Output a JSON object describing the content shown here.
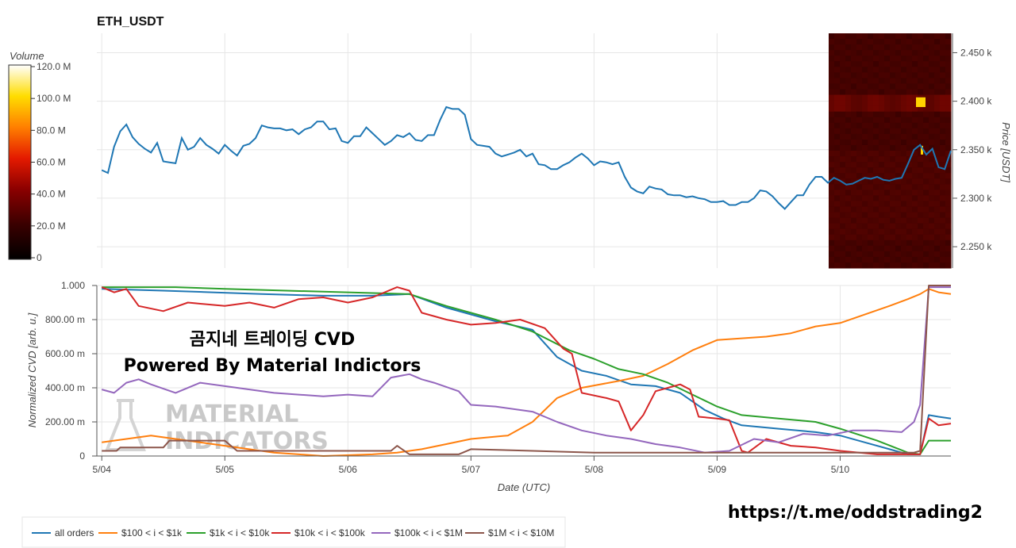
{
  "chart_data": [
    {
      "type": "line",
      "title": "ETH_USDT",
      "xlabel": "",
      "ylabel": "Price [USDT]",
      "ylim": [
        2228,
        2470
      ],
      "yticks": [
        "2.250 k",
        "2.300 k",
        "2.350 k",
        "2.400 k",
        "2.450 k"
      ],
      "ytick_values": [
        2250,
        2300,
        2350,
        2400,
        2450
      ],
      "grid": true,
      "series": [
        {
          "color": "#1f77b4",
          "x": [
            0,
            0.05,
            0.1,
            0.15,
            0.2,
            0.25,
            0.3,
            0.35,
            0.4,
            0.45,
            0.5,
            0.55,
            0.6,
            0.65,
            0.7,
            0.75,
            0.8,
            0.85,
            0.9,
            0.95,
            1.0,
            1.05,
            1.1,
            1.15,
            1.2,
            1.25,
            1.3,
            1.35,
            1.4,
            1.45,
            1.5,
            1.55,
            1.6,
            1.65,
            1.7,
            1.75,
            1.8,
            1.85,
            1.9,
            1.95,
            2.0,
            2.05,
            2.1,
            2.15,
            2.2,
            2.25,
            2.3,
            2.35,
            2.4,
            2.45,
            2.5,
            2.55,
            2.6,
            2.65,
            2.7,
            2.75,
            2.8,
            2.85,
            2.9,
            2.95,
            3.0,
            3.05,
            3.1,
            3.15,
            3.2,
            3.25,
            3.3,
            3.35,
            3.4,
            3.45,
            3.5,
            3.55,
            3.6,
            3.65,
            3.7,
            3.75,
            3.8,
            3.85,
            3.9,
            3.95,
            4.0,
            4.05,
            4.1,
            4.15,
            4.2,
            4.25,
            4.3,
            4.35,
            4.4,
            4.45,
            4.5,
            4.55,
            4.6,
            4.65,
            4.7,
            4.75,
            4.8,
            4.85,
            4.9,
            4.95,
            5.0,
            5.05,
            5.1,
            5.15,
            5.2,
            5.25,
            5.3,
            5.35,
            5.4,
            5.45,
            5.5,
            5.55,
            5.6,
            5.65,
            5.7,
            5.75,
            5.8,
            5.85,
            5.9,
            5.95,
            6.0,
            6.05,
            6.1,
            6.15,
            6.2,
            6.25,
            6.3,
            6.35,
            6.4,
            6.45,
            6.5,
            6.55,
            6.6,
            6.65,
            6.7,
            6.75,
            6.8,
            6.85,
            6.9
          ],
          "y": [
            2329,
            2326,
            2353,
            2369,
            2376,
            2363,
            2356,
            2351,
            2347,
            2357,
            2338,
            2337,
            2336,
            2362,
            2350,
            2353,
            2362,
            2355,
            2351,
            2346,
            2355,
            2349,
            2344,
            2354,
            2356,
            2362,
            2375,
            2373,
            2372,
            2372,
            2370,
            2371,
            2366,
            2371,
            2373,
            2379,
            2379,
            2371,
            2372,
            2359,
            2357,
            2364,
            2364,
            2373,
            2367,
            2361,
            2355,
            2359,
            2365,
            2363,
            2367,
            2360,
            2359,
            2365,
            2365,
            2381,
            2394,
            2392,
            2392,
            2386,
            2361,
            2355,
            2354,
            2353,
            2346,
            2343,
            2345,
            2347,
            2350,
            2343,
            2346,
            2335,
            2334,
            2330,
            2330,
            2334,
            2337,
            2342,
            2346,
            2341,
            2334,
            2338,
            2337,
            2335,
            2337,
            2322,
            2311,
            2307,
            2305,
            2312,
            2310,
            2309,
            2304,
            2303,
            2303,
            2301,
            2302,
            2300,
            2299,
            2296,
            2296,
            2297,
            2293,
            2293,
            2296,
            2296,
            2300,
            2308,
            2307,
            2302,
            2295,
            2289,
            2296,
            2303,
            2303,
            2314,
            2322,
            2322,
            2316,
            2321,
            2318,
            2314,
            2315,
            2318,
            2321,
            2320,
            2322,
            2319,
            2318,
            2320,
            2321,
            2335,
            2350,
            2355,
            2345,
            2351,
            2332,
            2330,
            2349
          ]
        }
      ]
    },
    {
      "type": "line",
      "title": "",
      "xlabel": "Date (UTC)",
      "ylabel": "Normalized CVD [arb. u.]",
      "ylim": [
        0,
        1.0
      ],
      "yticks": [
        "0",
        "200.00 m",
        "400.00 m",
        "600.00 m",
        "800.00 m",
        "1.000"
      ],
      "ytick_values": [
        0,
        0.2,
        0.4,
        0.6,
        0.8,
        1.0
      ],
      "xlim": [
        -0.04,
        6.9
      ],
      "xticks": [
        "5/04",
        "5/05",
        "5/06",
        "5/07",
        "5/08",
        "5/09",
        "5/10"
      ],
      "xtick_values": [
        0,
        1,
        2,
        3,
        4,
        5,
        6
      ],
      "grid": true,
      "legend": "bottom-left",
      "series": [
        {
          "name": "all orders",
          "color": "#1f77b4",
          "x": [
            0,
            0.5,
            0.9,
            1.3,
            1.8,
            2.2,
            2.5,
            2.8,
            3.2,
            3.5,
            3.7,
            3.9,
            4.1,
            4.3,
            4.5,
            4.7,
            4.9,
            5.05,
            5.2,
            5.5,
            5.8,
            6.0,
            6.2,
            6.4,
            6.55,
            6.65,
            6.72,
            6.8,
            6.9
          ],
          "y": [
            0.98,
            0.97,
            0.96,
            0.95,
            0.94,
            0.94,
            0.95,
            0.87,
            0.79,
            0.74,
            0.58,
            0.5,
            0.47,
            0.42,
            0.41,
            0.37,
            0.27,
            0.22,
            0.18,
            0.16,
            0.14,
            0.12,
            0.08,
            0.04,
            0.01,
            0.01,
            0.24,
            0.23,
            0.22
          ]
        },
        {
          "name": "$100 < i < $1k",
          "color": "#ff7f0e",
          "x": [
            0,
            0.2,
            0.4,
            0.6,
            1.0,
            1.4,
            1.8,
            2.2,
            2.4,
            2.6,
            2.8,
            3.0,
            3.3,
            3.5,
            3.7,
            3.9,
            4.2,
            4.4,
            4.6,
            4.8,
            5.0,
            5.4,
            5.6,
            5.8,
            6.0,
            6.2,
            6.4,
            6.55,
            6.65,
            6.72,
            6.8,
            6.9
          ],
          "y": [
            0.08,
            0.1,
            0.12,
            0.1,
            0.06,
            0.02,
            0.0,
            0.01,
            0.02,
            0.04,
            0.07,
            0.1,
            0.12,
            0.2,
            0.34,
            0.4,
            0.44,
            0.47,
            0.54,
            0.62,
            0.68,
            0.7,
            0.72,
            0.76,
            0.78,
            0.83,
            0.88,
            0.92,
            0.95,
            0.98,
            0.96,
            0.95
          ]
        },
        {
          "name": "$1k < i < $10k",
          "color": "#2ca02c",
          "x": [
            0,
            0.3,
            0.6,
            1.0,
            1.5,
            2.0,
            2.5,
            2.8,
            3.2,
            3.5,
            3.8,
            4.0,
            4.2,
            4.4,
            4.6,
            4.8,
            5.0,
            5.2,
            5.5,
            5.8,
            6.0,
            6.3,
            6.55,
            6.65,
            6.72,
            6.8,
            6.9
          ],
          "y": [
            0.99,
            0.99,
            0.99,
            0.98,
            0.97,
            0.96,
            0.95,
            0.88,
            0.8,
            0.73,
            0.62,
            0.57,
            0.51,
            0.48,
            0.43,
            0.36,
            0.29,
            0.24,
            0.22,
            0.2,
            0.16,
            0.09,
            0.02,
            0.01,
            0.09,
            0.09,
            0.09
          ]
        },
        {
          "name": "$10k < i < $100k",
          "color": "#d62728",
          "x": [
            0,
            0.1,
            0.2,
            0.3,
            0.5,
            0.7,
            1.0,
            1.2,
            1.4,
            1.6,
            1.8,
            2.0,
            2.2,
            2.4,
            2.5,
            2.6,
            2.8,
            3.0,
            3.2,
            3.4,
            3.6,
            3.75,
            3.82,
            3.9,
            4.1,
            4.2,
            4.3,
            4.4,
            4.5,
            4.6,
            4.7,
            4.78,
            4.85,
            5.0,
            5.1,
            5.2,
            5.25,
            5.4,
            5.6,
            5.8,
            6.0,
            6.3,
            6.55,
            6.65,
            6.72,
            6.8,
            6.9
          ],
          "y": [
            0.99,
            0.96,
            0.98,
            0.88,
            0.85,
            0.9,
            0.88,
            0.9,
            0.87,
            0.92,
            0.93,
            0.9,
            0.93,
            0.99,
            0.97,
            0.84,
            0.8,
            0.77,
            0.78,
            0.8,
            0.75,
            0.63,
            0.6,
            0.37,
            0.34,
            0.32,
            0.15,
            0.24,
            0.38,
            0.4,
            0.42,
            0.39,
            0.23,
            0.22,
            0.21,
            0.03,
            0.02,
            0.1,
            0.06,
            0.05,
            0.03,
            0.01,
            0.01,
            0.01,
            0.22,
            0.18,
            0.19
          ]
        },
        {
          "name": "$100k < i < $1M",
          "color": "#9467bd",
          "x": [
            0,
            0.1,
            0.2,
            0.3,
            0.4,
            0.6,
            0.8,
            1.0,
            1.2,
            1.4,
            1.6,
            1.8,
            2.0,
            2.2,
            2.35,
            2.5,
            2.6,
            2.7,
            2.9,
            3.0,
            3.2,
            3.5,
            3.7,
            3.9,
            4.1,
            4.3,
            4.5,
            4.7,
            4.9,
            5.1,
            5.3,
            5.5,
            5.7,
            5.9,
            6.1,
            6.3,
            6.5,
            6.6,
            6.65,
            6.72,
            6.8,
            6.9
          ],
          "y": [
            0.39,
            0.37,
            0.43,
            0.45,
            0.42,
            0.37,
            0.43,
            0.41,
            0.39,
            0.37,
            0.36,
            0.35,
            0.36,
            0.35,
            0.46,
            0.48,
            0.45,
            0.43,
            0.38,
            0.3,
            0.29,
            0.26,
            0.2,
            0.15,
            0.12,
            0.1,
            0.07,
            0.05,
            0.02,
            0.03,
            0.1,
            0.08,
            0.13,
            0.12,
            0.15,
            0.15,
            0.14,
            0.2,
            0.3,
            0.99,
            0.99,
            0.99
          ]
        },
        {
          "name": "$1M < i < $10M",
          "color": "#8c564b",
          "x": [
            0,
            0.12,
            0.15,
            0.5,
            0.55,
            0.9,
            1.0,
            1.1,
            1.5,
            2.0,
            2.35,
            2.4,
            2.5,
            2.9,
            3.0,
            3.5,
            4.0,
            5.0,
            6.0,
            6.6,
            6.65,
            6.72,
            6.8,
            6.9
          ],
          "y": [
            0.03,
            0.03,
            0.05,
            0.05,
            0.09,
            0.09,
            0.09,
            0.03,
            0.03,
            0.03,
            0.03,
            0.06,
            0.01,
            0.01,
            0.04,
            0.03,
            0.02,
            0.02,
            0.02,
            0.02,
            0.03,
            1.0,
            1.0,
            1.0
          ]
        }
      ]
    }
  ],
  "heatmap": {
    "label": "Volume",
    "colorbar_ticks": [
      "0",
      "20.0 M",
      "40.0 M",
      "60.0 M",
      "80.0 M",
      "100.0 M",
      "120.0 M"
    ],
    "colorbar_values": [
      0,
      20,
      40,
      60,
      80,
      100,
      120
    ],
    "colors": [
      "#000000",
      "#3a0000",
      "#8b0000",
      "#e41a00",
      "#ff7f00",
      "#ffdd00",
      "#ffffff"
    ]
  },
  "overlay": {
    "line1": "곰지네 트레이딩 CVD",
    "line2": "Powered By Material Indictors"
  },
  "watermark": {
    "line1": "MATERIAL",
    "line2": "INDICATORS"
  },
  "link": "https://t.me/oddstrading2"
}
